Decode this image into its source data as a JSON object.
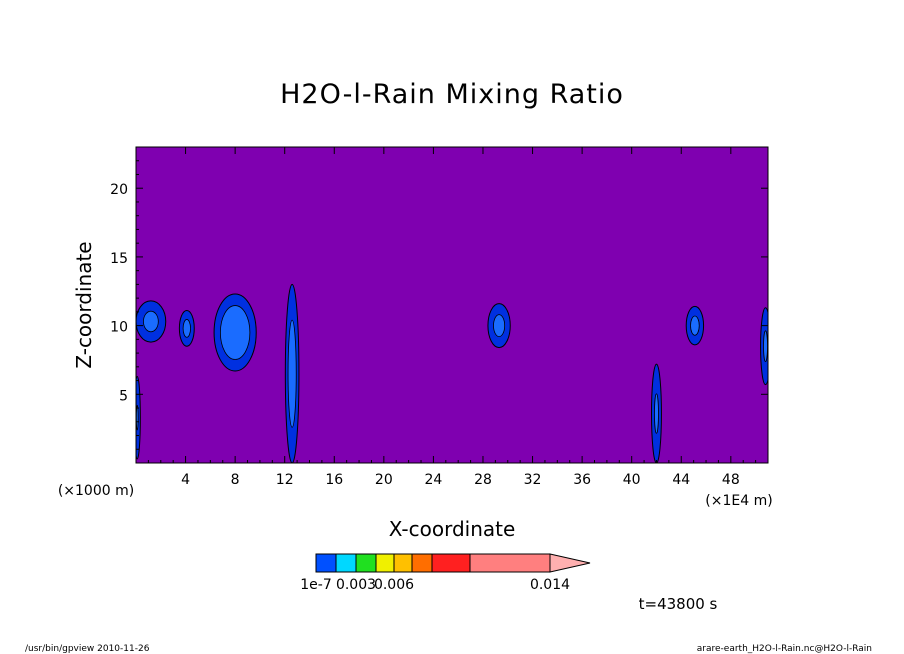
{
  "chart_data": {
    "type": "heatmap",
    "title": "H2O-l-Rain Mixing Ratio",
    "xlabel": "X-coordinate",
    "ylabel": "Z-coordinate",
    "x_unit_label": "(×1000 m)",
    "x_scale_label": "(×1E4 m)",
    "xlim": [
      0,
      51
    ],
    "ylim": [
      0,
      23
    ],
    "x_ticks": [
      4,
      8,
      12,
      16,
      20,
      24,
      28,
      32,
      36,
      40,
      44,
      48
    ],
    "y_ticks": [
      5,
      10,
      15,
      20
    ],
    "background_color": "#7f00b0",
    "levels": [
      {
        "label": "1e-7",
        "color": "#0050ff"
      },
      {
        "label": "",
        "color": "#00d8ff"
      },
      {
        "label": "0.003",
        "color": "#20e020"
      },
      {
        "label": "",
        "color": "#f0f000"
      },
      {
        "label": "0.006",
        "color": "#ffc000"
      },
      {
        "label": "",
        "color": "#ff6e00"
      },
      {
        "label": "",
        "color": "#ff2020"
      },
      {
        "label": "0.014",
        "color": "#ff7f7f"
      },
      {
        "label": "",
        "color": "#ffb0b0"
      }
    ],
    "features": [
      {
        "name": "cell-x1",
        "cx": 1.2,
        "cy": 10.3,
        "rx": 1.2,
        "ry": 1.5,
        "core": 0.5
      },
      {
        "name": "cell-x4",
        "cx": 4.1,
        "cy": 9.8,
        "rx": 0.6,
        "ry": 1.3,
        "core": 0.5
      },
      {
        "name": "cell-x8",
        "cx": 8.0,
        "cy": 9.5,
        "rx": 1.7,
        "ry": 2.8,
        "core": 0.7
      },
      {
        "name": "cell-x12",
        "cx": 12.6,
        "cy": 6.5,
        "rx": 0.55,
        "ry": 6.5,
        "core": 0.6
      },
      {
        "name": "cell-x29",
        "cx": 29.3,
        "cy": 10.0,
        "rx": 0.9,
        "ry": 1.6,
        "core": 0.5
      },
      {
        "name": "cell-x42",
        "cx": 42.0,
        "cy": 3.6,
        "rx": 0.4,
        "ry": 3.6,
        "core": 0.4
      },
      {
        "name": "cell-x45",
        "cx": 45.1,
        "cy": 10.0,
        "rx": 0.7,
        "ry": 1.4,
        "core": 0.5
      },
      {
        "name": "cell-x51",
        "cx": 50.8,
        "cy": 8.5,
        "rx": 0.4,
        "ry": 2.8,
        "core": 0.4
      },
      {
        "name": "cell-x0",
        "cx": 0.1,
        "cy": 3.3,
        "rx": 0.25,
        "ry": 3.0,
        "core": 0.3
      }
    ]
  },
  "time_label": "t=43800 s",
  "footer": {
    "left": "/usr/bin/gpview   2010-11-26",
    "right": "arare-earth_H2O-l-Rain.nc@H2O-l-Rain"
  }
}
